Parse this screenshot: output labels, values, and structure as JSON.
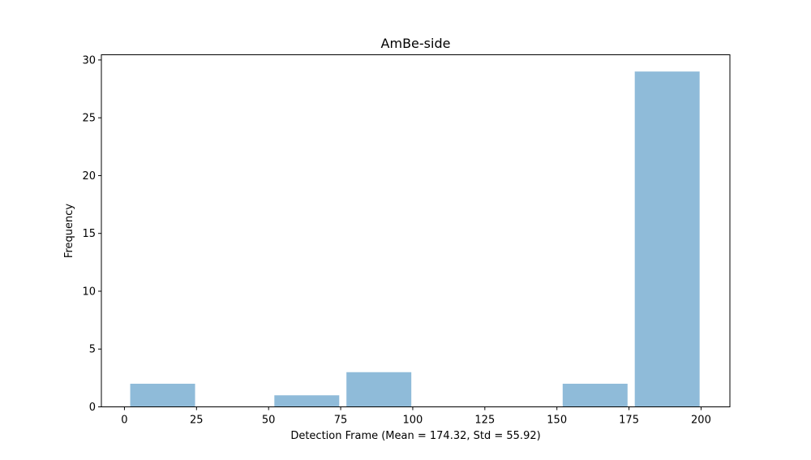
{
  "chart_data": {
    "type": "bar",
    "title": "AmBe-side",
    "xlabel": "Detection Frame (Mean = 174.32, Std = 55.92)",
    "ylabel": "Frequency",
    "xlim": [
      -8,
      210
    ],
    "ylim": [
      0,
      30.45
    ],
    "xticks": [
      0,
      25,
      50,
      75,
      100,
      125,
      150,
      175,
      200
    ],
    "yticks": [
      0,
      5,
      10,
      15,
      20,
      25,
      30
    ],
    "bins": [
      {
        "start": 2,
        "end": 24.5,
        "value": 2
      },
      {
        "start": 24.5,
        "end": 47,
        "value": 0
      },
      {
        "start": 52,
        "end": 74.5,
        "value": 1
      },
      {
        "start": 77,
        "end": 99.5,
        "value": 3
      },
      {
        "start": 102,
        "end": 124.5,
        "value": 0
      },
      {
        "start": 127,
        "end": 149.5,
        "value": 0
      },
      {
        "start": 152,
        "end": 174.5,
        "value": 2
      },
      {
        "start": 177,
        "end": 199.5,
        "value": 29
      }
    ],
    "bar_color": "#8fbbd9",
    "grid": false,
    "legend": "none"
  }
}
